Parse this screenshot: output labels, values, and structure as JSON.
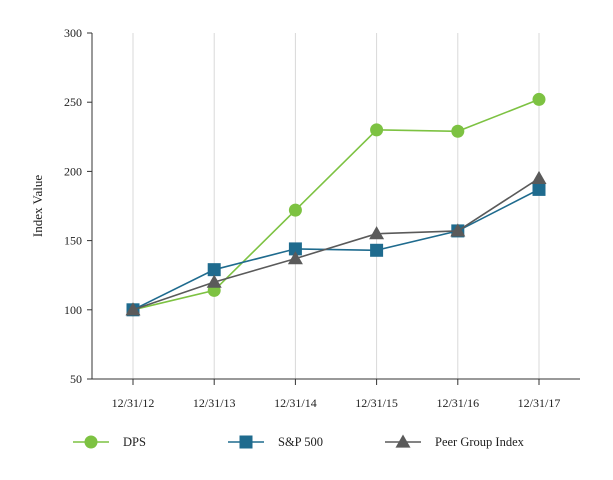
{
  "chart_data": {
    "type": "line",
    "title": "",
    "xlabel": "",
    "ylabel": "Index Value",
    "categories": [
      "12/31/12",
      "12/31/13",
      "12/31/14",
      "12/31/15",
      "12/31/16",
      "12/31/17"
    ],
    "ylim": [
      50,
      300
    ],
    "yticks": [
      50,
      100,
      150,
      200,
      250,
      300
    ],
    "grid": "vertical",
    "legend_position": "bottom",
    "series": [
      {
        "name": "DPS",
        "marker": "circle",
        "color": "#7dc242",
        "values": [
          100,
          114,
          172,
          230,
          229,
          252
        ]
      },
      {
        "name": "S&P 500",
        "marker": "square",
        "color": "#1f6b8e",
        "values": [
          100,
          129,
          144,
          143,
          157,
          187
        ]
      },
      {
        "name": "Peer Group Index",
        "marker": "triangle",
        "color": "#5a5a5a",
        "values": [
          100,
          120,
          137,
          155,
          157,
          195
        ]
      }
    ]
  }
}
